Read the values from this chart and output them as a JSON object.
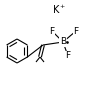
{
  "bg_color": "#ffffff",
  "text_color": "#000000",
  "line_color": "#000000",
  "K_label": "K",
  "K_charge": "+",
  "B_label": "B",
  "F_label": "F",
  "font_size": 6.5,
  "bond_lw": 0.8
}
